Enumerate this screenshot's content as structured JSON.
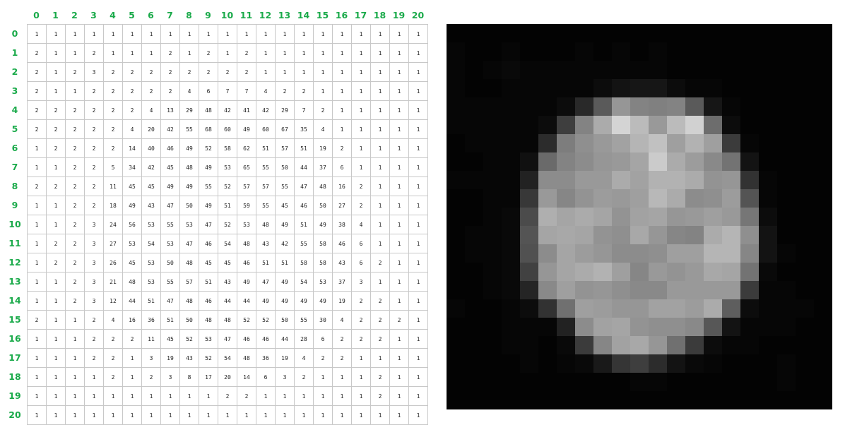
{
  "col_labels": [
    "0",
    "1",
    "2",
    "3",
    "4",
    "5",
    "6",
    "7",
    "8",
    "9",
    "10",
    "11",
    "12",
    "13",
    "14",
    "15",
    "16",
    "17",
    "18",
    "19",
    "20"
  ],
  "row_labels": [
    "0",
    "1",
    "2",
    "3",
    "4",
    "5",
    "6",
    "7",
    "8",
    "9",
    "10",
    "11",
    "12",
    "13",
    "14",
    "15",
    "16",
    "17",
    "18",
    "19",
    "20"
  ],
  "matrix": [
    [
      1,
      1,
      1,
      1,
      1,
      1,
      1,
      1,
      1,
      1,
      1,
      1,
      1,
      1,
      1,
      1,
      1,
      1,
      1,
      1,
      1
    ],
    [
      2,
      1,
      1,
      2,
      1,
      1,
      1,
      2,
      1,
      2,
      1,
      2,
      1,
      1,
      1,
      1,
      1,
      1,
      1,
      1,
      1
    ],
    [
      2,
      1,
      2,
      3,
      2,
      2,
      2,
      2,
      2,
      2,
      2,
      2,
      1,
      1,
      1,
      1,
      1,
      1,
      1,
      1,
      1
    ],
    [
      2,
      1,
      1,
      2,
      2,
      2,
      2,
      2,
      4,
      6,
      7,
      7,
      4,
      2,
      2,
      1,
      1,
      1,
      1,
      1,
      1
    ],
    [
      2,
      2,
      2,
      2,
      2,
      2,
      4,
      13,
      29,
      48,
      42,
      41,
      42,
      29,
      7,
      2,
      1,
      1,
      1,
      1,
      1
    ],
    [
      2,
      2,
      2,
      2,
      2,
      4,
      20,
      42,
      55,
      68,
      60,
      49,
      60,
      67,
      35,
      4,
      1,
      1,
      1,
      1,
      1
    ],
    [
      1,
      2,
      2,
      2,
      2,
      14,
      40,
      46,
      49,
      52,
      58,
      62,
      51,
      57,
      51,
      19,
      2,
      1,
      1,
      1,
      1
    ],
    [
      1,
      1,
      2,
      2,
      5,
      34,
      42,
      45,
      48,
      49,
      53,
      65,
      55,
      50,
      44,
      37,
      6,
      1,
      1,
      1,
      1
    ],
    [
      2,
      2,
      2,
      2,
      11,
      45,
      45,
      49,
      49,
      55,
      52,
      57,
      57,
      55,
      47,
      48,
      16,
      2,
      1,
      1,
      1
    ],
    [
      1,
      1,
      2,
      2,
      18,
      49,
      43,
      47,
      50,
      49,
      51,
      59,
      55,
      45,
      46,
      50,
      27,
      2,
      1,
      1,
      1
    ],
    [
      1,
      1,
      2,
      3,
      24,
      56,
      53,
      55,
      53,
      47,
      52,
      53,
      48,
      49,
      51,
      49,
      38,
      4,
      1,
      1,
      1
    ],
    [
      1,
      2,
      2,
      3,
      27,
      53,
      54,
      53,
      47,
      46,
      54,
      48,
      43,
      42,
      55,
      58,
      46,
      6,
      1,
      1,
      1
    ],
    [
      1,
      2,
      2,
      3,
      26,
      45,
      53,
      50,
      48,
      45,
      45,
      46,
      51,
      51,
      58,
      58,
      43,
      6,
      2,
      1,
      1
    ],
    [
      1,
      1,
      2,
      3,
      21,
      48,
      53,
      55,
      57,
      51,
      43,
      49,
      47,
      49,
      54,
      53,
      37,
      3,
      1,
      1,
      1
    ],
    [
      1,
      1,
      2,
      3,
      12,
      44,
      51,
      47,
      48,
      46,
      44,
      44,
      49,
      49,
      49,
      49,
      19,
      2,
      2,
      1,
      1
    ],
    [
      2,
      1,
      1,
      2,
      4,
      16,
      36,
      51,
      50,
      48,
      48,
      52,
      52,
      50,
      55,
      30,
      4,
      2,
      2,
      2,
      1
    ],
    [
      1,
      1,
      1,
      2,
      2,
      2,
      11,
      45,
      52,
      53,
      47,
      46,
      46,
      44,
      28,
      6,
      2,
      2,
      2,
      1,
      1
    ],
    [
      1,
      1,
      1,
      2,
      2,
      1,
      3,
      19,
      43,
      52,
      54,
      48,
      36,
      19,
      4,
      2,
      2,
      1,
      1,
      1,
      1
    ],
    [
      1,
      1,
      1,
      1,
      2,
      1,
      2,
      3,
      8,
      17,
      20,
      14,
      6,
      3,
      2,
      1,
      1,
      1,
      2,
      1,
      1
    ],
    [
      1,
      1,
      1,
      1,
      1,
      1,
      1,
      1,
      1,
      1,
      2,
      2,
      1,
      1,
      1,
      1,
      1,
      1,
      2,
      1,
      1
    ],
    [
      1,
      1,
      1,
      1,
      1,
      1,
      1,
      1,
      1,
      1,
      1,
      1,
      1,
      1,
      1,
      1,
      1,
      1,
      1,
      1,
      1
    ]
  ],
  "colors": {
    "label_green": "#1aaa4a",
    "grid_line": "#c8c8c8",
    "image_background": "#000000"
  }
}
